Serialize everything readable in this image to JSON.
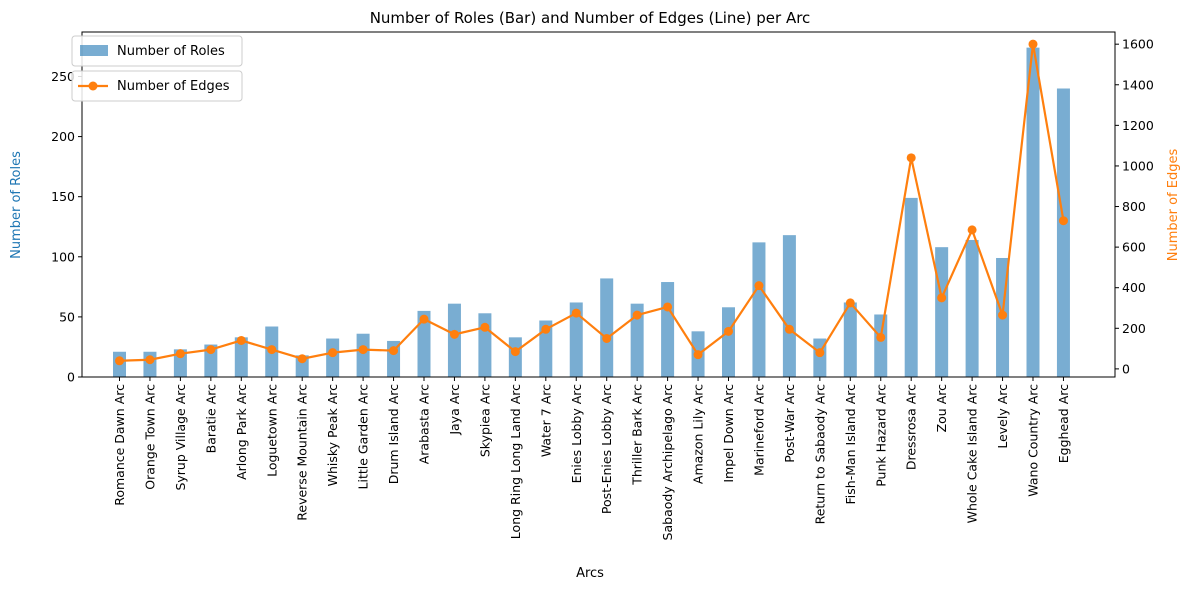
{
  "chart_data": {
    "type": "bar+line",
    "title": "Number of Roles (Bar) and Number of Edges (Line) per Arc",
    "xlabel": "Arcs",
    "ylabel_left": "Number of Roles",
    "ylabel_right": "Number of Edges",
    "colors": {
      "bars": "#1f77b4",
      "line": "#ff7f0e",
      "left_label": "#1f77b4",
      "right_label": "#ff7f0e"
    },
    "ylim_left": [
      0,
      287
    ],
    "ylim_right": [
      -40,
      1660
    ],
    "yticks_left": [
      0,
      50,
      100,
      150,
      200,
      250
    ],
    "yticks_right": [
      0,
      200,
      400,
      600,
      800,
      1000,
      1200,
      1400,
      1600
    ],
    "grid": false,
    "legend": [
      {
        "label": "Number of Roles",
        "kind": "bar",
        "placement": "top-left"
      },
      {
        "label": "Number of Edges",
        "kind": "line",
        "placement": "top-left"
      }
    ],
    "categories": [
      "Romance Dawn Arc",
      "Orange Town Arc",
      "Syrup Village Arc",
      "Baratie Arc",
      "Arlong Park Arc",
      "Loguetown Arc",
      "Reverse Mountain Arc",
      "Whisky Peak Arc",
      "Little Garden Arc",
      "Drum Island Arc",
      "Arabasta Arc",
      "Jaya Arc",
      "Skypiea Arc",
      "Long Ring Long Land Arc",
      "Water 7 Arc",
      "Enies Lobby Arc",
      "Post-Enies Lobby Arc",
      "Thriller Bark Arc",
      "Sabaody Archipelago Arc",
      "Amazon Lily Arc",
      "Impel Down Arc",
      "Marineford Arc",
      "Post-War Arc",
      "Return to Sabaody Arc",
      "Fish-Man Island Arc",
      "Punk Hazard Arc",
      "Dressrosa Arc",
      "Zou Arc",
      "Whole Cake Island Arc",
      "Levely Arc",
      "Wano Country Arc",
      "Egghead Arc"
    ],
    "series": [
      {
        "name": "Number of Roles",
        "type": "bar",
        "axis": "left",
        "values": [
          21,
          21,
          23,
          27,
          33,
          42,
          18,
          32,
          36,
          30,
          55,
          61,
          53,
          33,
          47,
          62,
          82,
          61,
          79,
          38,
          58,
          112,
          118,
          32,
          62,
          52,
          149,
          108,
          114,
          99,
          274,
          240
        ]
      },
      {
        "name": "Number of Edges",
        "type": "line",
        "axis": "right",
        "values": [
          40,
          45,
          75,
          95,
          140,
          95,
          50,
          80,
          95,
          90,
          245,
          170,
          205,
          85,
          195,
          275,
          150,
          265,
          305,
          70,
          185,
          410,
          195,
          80,
          325,
          155,
          1040,
          350,
          685,
          265,
          1600,
          730
        ]
      }
    ]
  }
}
